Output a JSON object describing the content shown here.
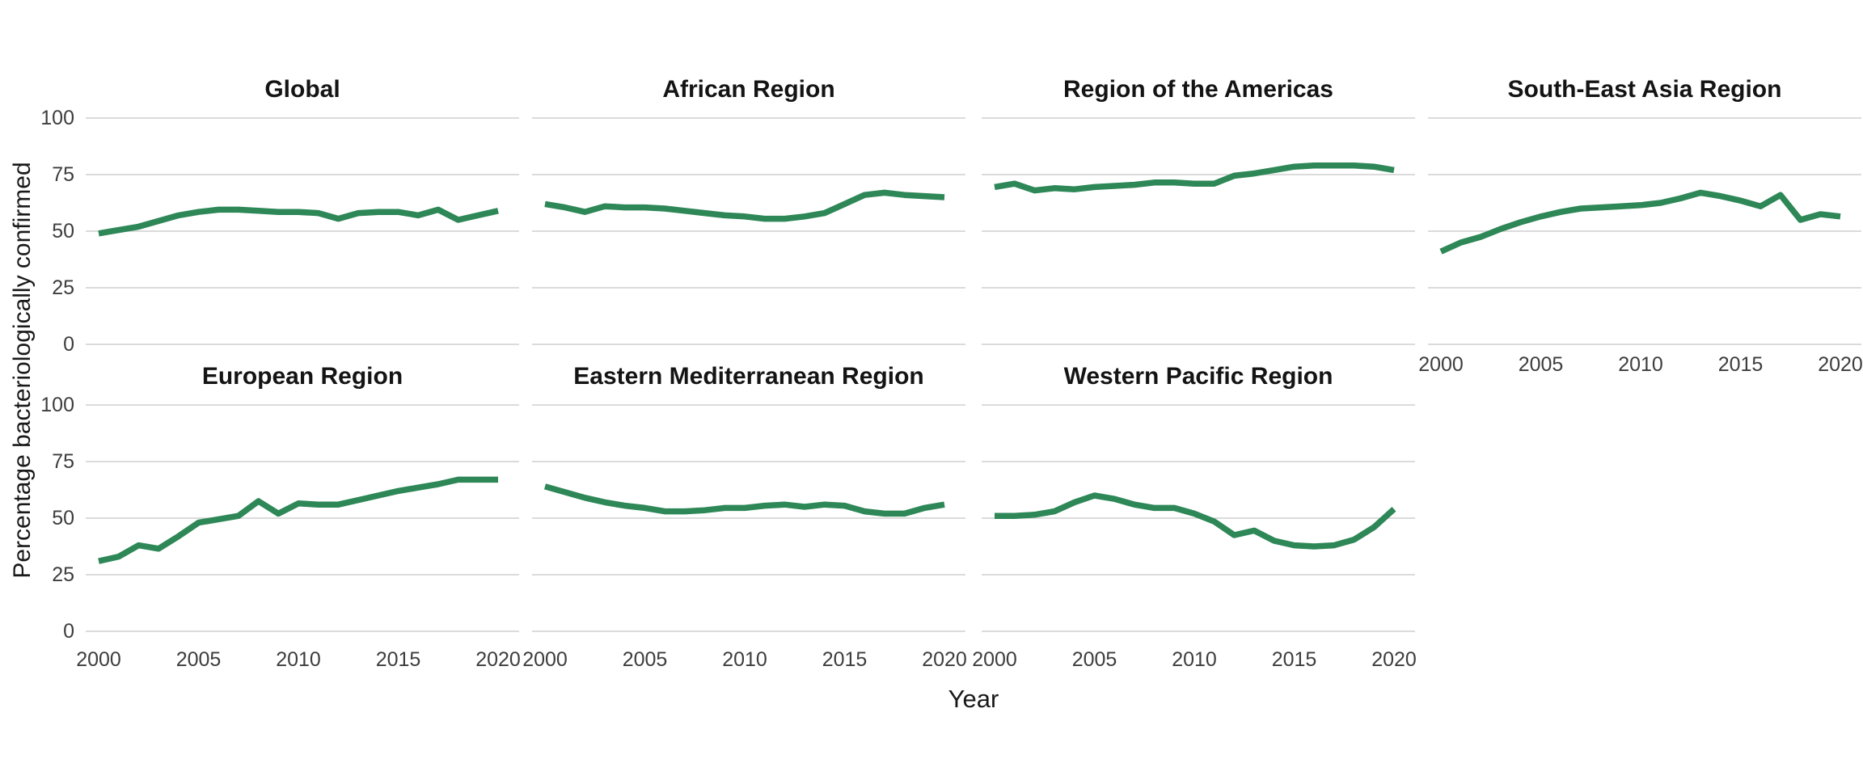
{
  "chart_data": {
    "type": "line",
    "ylabel": "Percentage bacteriologically confirmed",
    "xlabel": "Year",
    "years": [
      2000,
      2001,
      2002,
      2003,
      2004,
      2005,
      2006,
      2007,
      2008,
      2009,
      2010,
      2011,
      2012,
      2013,
      2014,
      2015,
      2016,
      2017,
      2018,
      2019,
      2020
    ],
    "x_ticks": [
      2000,
      2005,
      2010,
      2015,
      2020
    ],
    "y_ticks": [
      100,
      75,
      50,
      25,
      0
    ],
    "ylim": [
      0,
      100
    ],
    "grid": "horizontal-major-only",
    "legend": "none",
    "line_color": "#2e8757",
    "grid_color": "#d6d6d6",
    "facets": [
      {
        "title": "Global",
        "values": [
          49,
          50.5,
          52,
          54.5,
          57,
          58.5,
          59.5,
          59.5,
          59,
          58.5,
          58.5,
          58,
          55.5,
          58,
          58.5,
          58.5,
          57,
          59.5,
          55,
          57,
          59
        ]
      },
      {
        "title": "African Region",
        "values": [
          62,
          60.5,
          58.5,
          61,
          60.5,
          60.5,
          60,
          59,
          58,
          57,
          56.5,
          55.5,
          55.5,
          56.5,
          58,
          62,
          66,
          67,
          66,
          65.5,
          65
        ]
      },
      {
        "title": "Region of the Americas",
        "values": [
          69.5,
          71,
          68,
          69,
          68.5,
          69.5,
          70,
          70.5,
          71.5,
          71.5,
          71,
          71,
          74.5,
          75.5,
          77,
          78.5,
          79,
          79,
          79,
          78.5,
          77
        ]
      },
      {
        "title": "South-East Asia Region",
        "values": [
          41,
          45,
          47.5,
          51,
          54,
          56.5,
          58.5,
          60,
          60.5,
          61,
          61.5,
          62.5,
          64.5,
          67,
          65.5,
          63.5,
          61,
          66,
          55,
          57.5,
          56.5
        ]
      },
      {
        "title": "European Region",
        "values": [
          31,
          33,
          38,
          36.5,
          42,
          48,
          49.5,
          51,
          57.5,
          52,
          56.5,
          56,
          56,
          58,
          60,
          62,
          63.5,
          65,
          67,
          67,
          67
        ]
      },
      {
        "title": "Eastern Mediterranean Region",
        "values": [
          64,
          61.5,
          59,
          57,
          55.5,
          54.5,
          53,
          53,
          53.5,
          54.5,
          54.5,
          55.5,
          56,
          55,
          56,
          55.5,
          53,
          52,
          52,
          54.5,
          56
        ]
      },
      {
        "title": "Western Pacific Region",
        "values": [
          51,
          51,
          51.5,
          53,
          57,
          60,
          58.5,
          56,
          54.5,
          54.5,
          52,
          48.5,
          42.5,
          44.5,
          40,
          38,
          37.5,
          38,
          40.5,
          46,
          54
        ]
      }
    ]
  }
}
